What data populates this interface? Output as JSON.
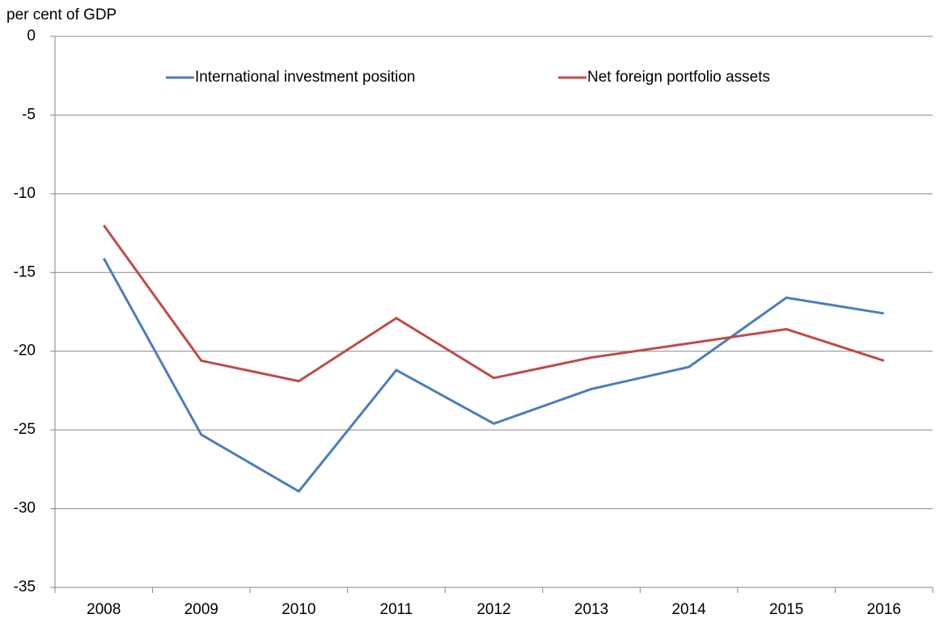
{
  "chart_data": {
    "type": "line",
    "y_label": "per cent of GDP",
    "categories": [
      "2008",
      "2009",
      "2010",
      "2011",
      "2012",
      "2013",
      "2014",
      "2015",
      "2016"
    ],
    "series": [
      {
        "name": "International investment position",
        "color": "#4a7ebb",
        "values": [
          -14.1,
          -25.3,
          -28.9,
          -21.2,
          -24.6,
          -22.4,
          -21.0,
          -16.6,
          -17.6
        ]
      },
      {
        "name": "Net foreign portfolio assets",
        "color": "#be4b48",
        "values": [
          -12.0,
          -20.6,
          -21.9,
          -17.9,
          -21.7,
          -20.4,
          -19.5,
          -18.6,
          -20.6
        ]
      }
    ],
    "ylim": [
      -35,
      0
    ],
    "yticks": [
      0,
      -5,
      -10,
      -15,
      -20,
      -25,
      -30,
      -35
    ],
    "grid": true,
    "legend": "top"
  }
}
